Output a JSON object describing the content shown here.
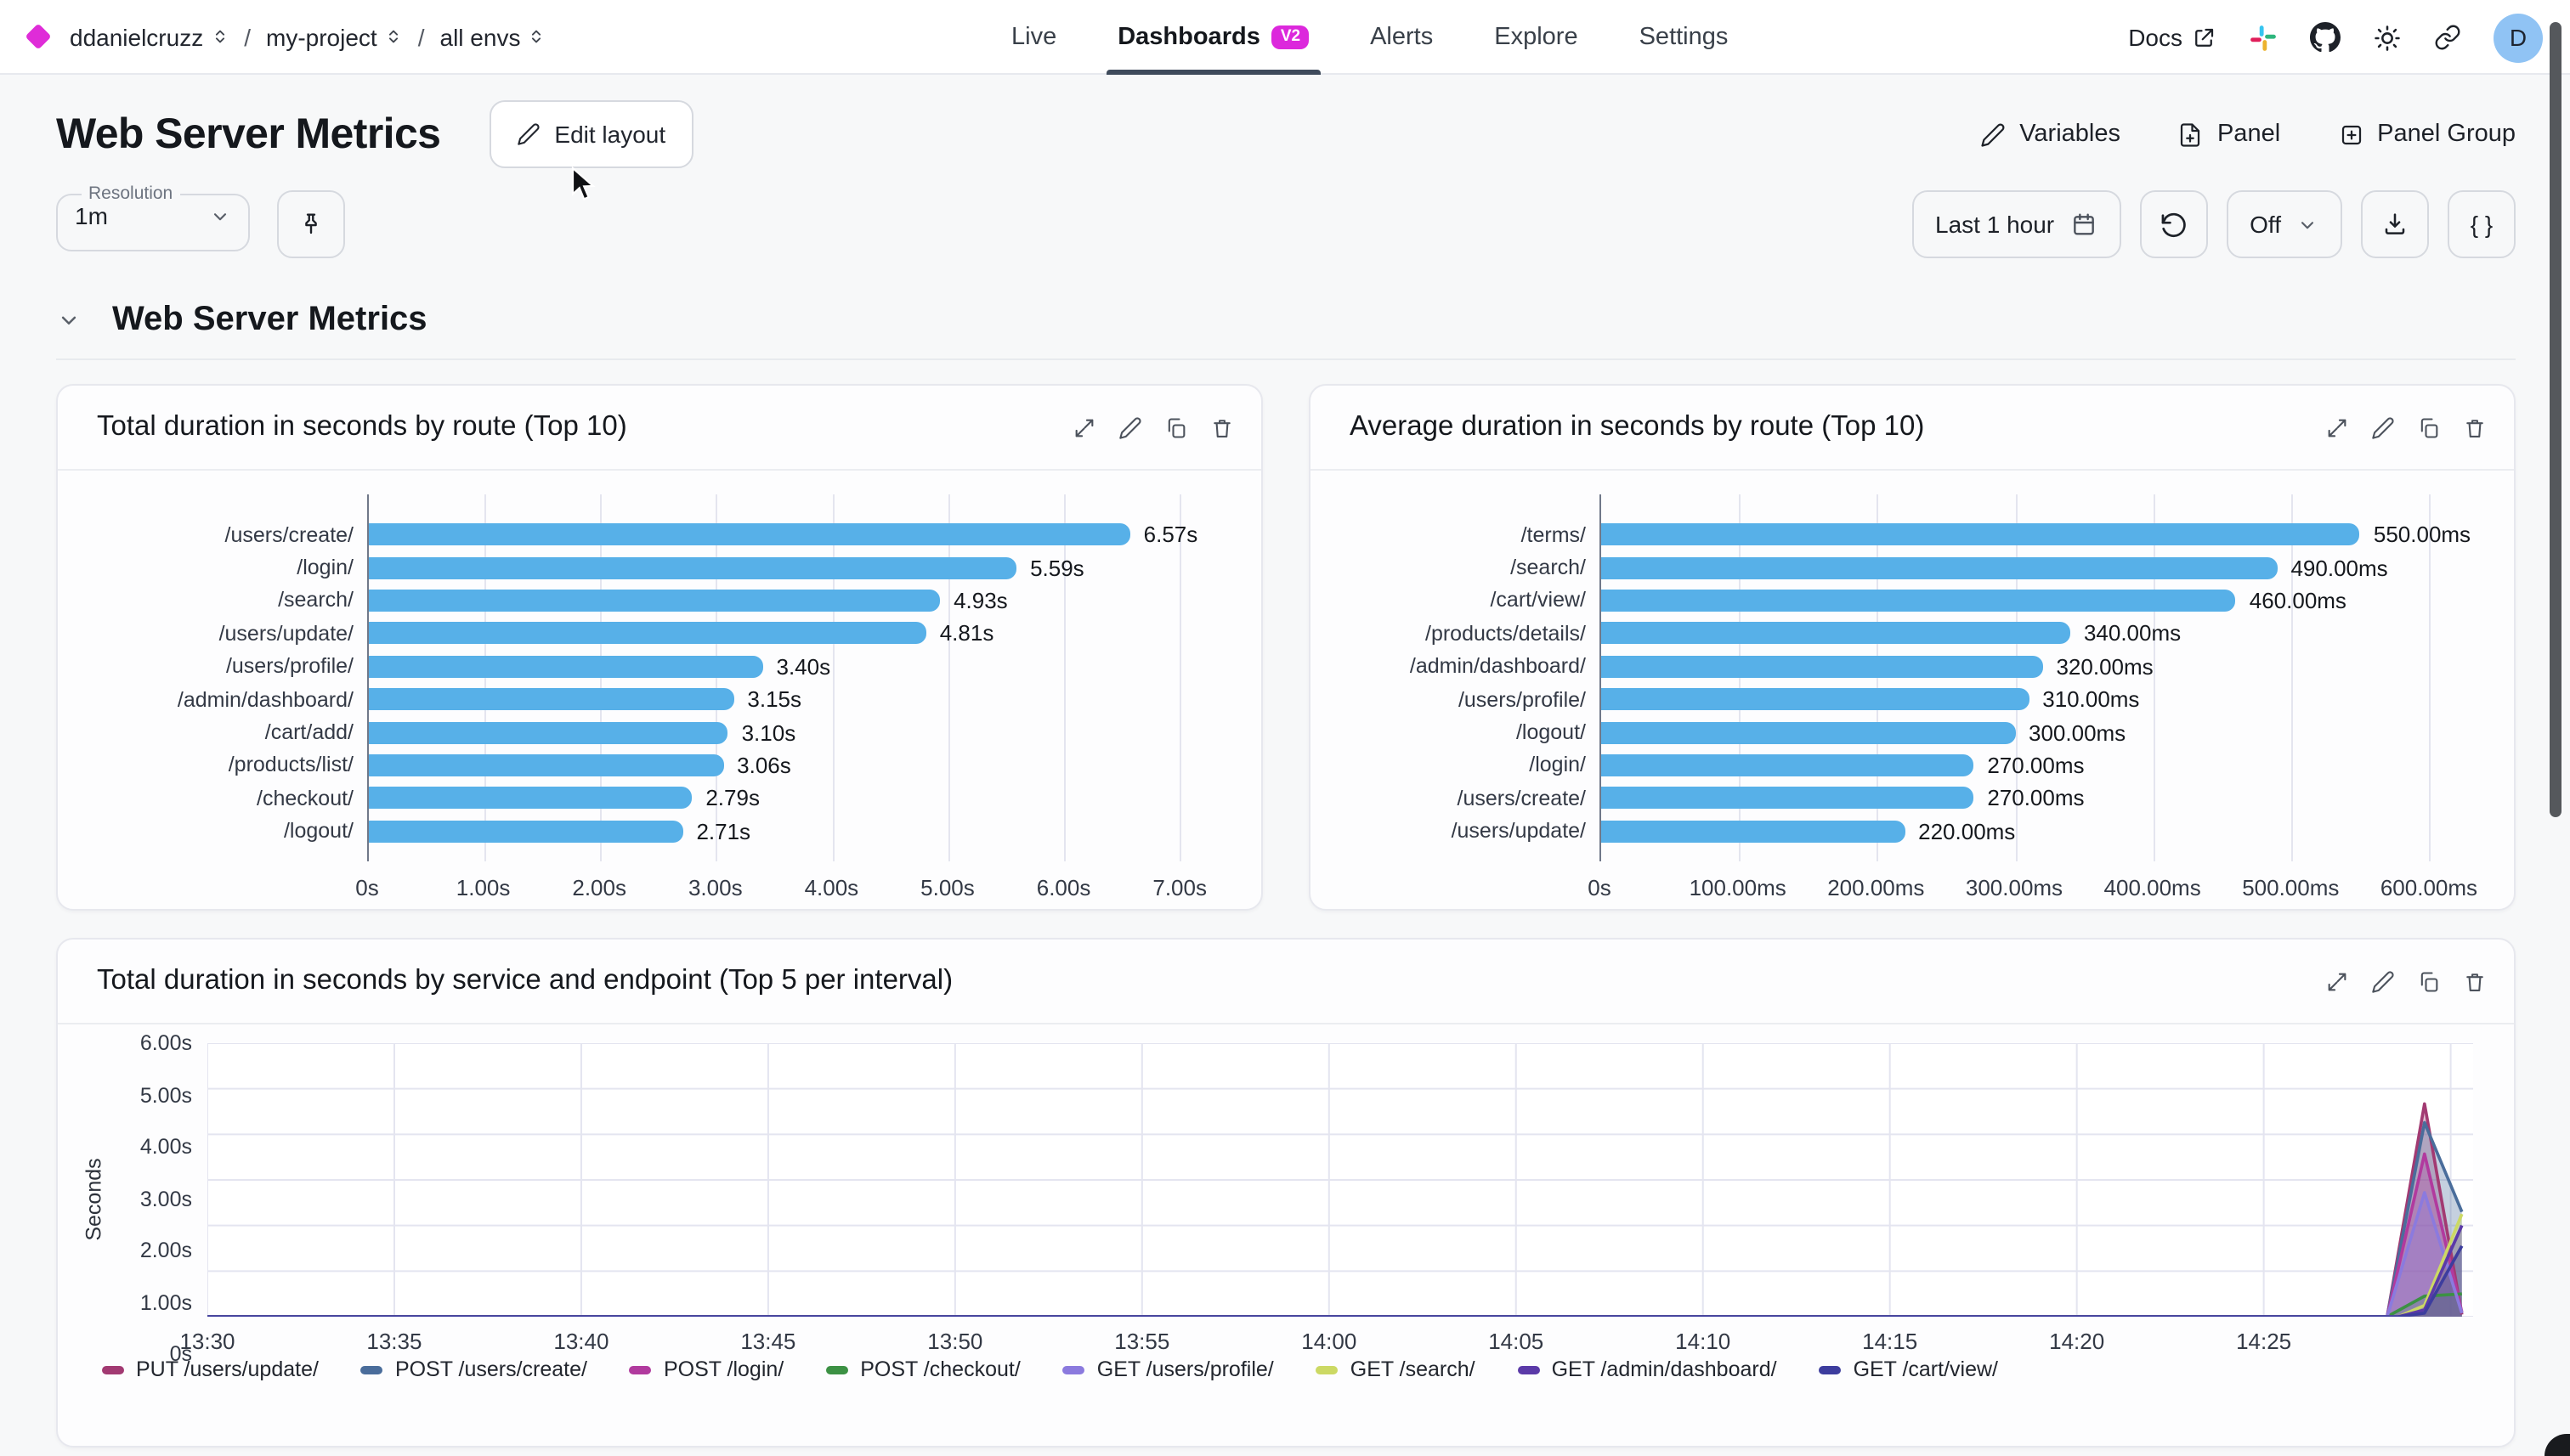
{
  "topbar": {
    "breadcrumb": {
      "org": "ddanielcruzz",
      "separator": "/",
      "project": "my-project",
      "env": "all envs"
    },
    "tabs": [
      {
        "label": "Live",
        "active": false
      },
      {
        "label": "Dashboards",
        "badge": "V2",
        "active": true
      },
      {
        "label": "Alerts",
        "active": false
      },
      {
        "label": "Explore",
        "active": false
      },
      {
        "label": "Settings",
        "active": false
      }
    ],
    "docs_label": "Docs",
    "avatar_initial": "D"
  },
  "header": {
    "title": "Web Server Metrics",
    "edit_layout_label": "Edit layout",
    "variables_label": "Variables",
    "panel_label": "Panel",
    "panel_group_label": "Panel Group"
  },
  "controls": {
    "resolution_label": "Resolution",
    "resolution_value": "1m",
    "time_range": "Last 1 hour",
    "auto_refresh": "Off",
    "braces_label": "{ }"
  },
  "section": {
    "title": "Web Server Metrics"
  },
  "icons": [
    "diamond-logo",
    "external-link",
    "slack",
    "github",
    "sun-theme",
    "link",
    "pencil",
    "file-plus",
    "square-plus",
    "pin",
    "calendar",
    "refresh-ccw",
    "chevron-down",
    "download",
    "expand",
    "copy",
    "trash"
  ],
  "colors": {
    "accent_magenta": "#dc28dc",
    "bar_blue": "#57b0e8",
    "tab_underline": "#3e4a5b",
    "avatar_bg": "#90c3f4"
  },
  "chart_data": [
    {
      "type": "bar",
      "orientation": "horizontal",
      "title": "Total duration in seconds by route (Top 10)",
      "categories": [
        "/users/create/",
        "/login/",
        "/search/",
        "/users/update/",
        "/users/profile/",
        "/admin/dashboard/",
        "/cart/add/",
        "/products/list/",
        "/checkout/",
        "/logout/"
      ],
      "values": [
        6.57,
        5.59,
        4.93,
        4.81,
        3.4,
        3.15,
        3.1,
        3.06,
        2.79,
        2.71
      ],
      "value_labels": [
        "6.57s",
        "5.59s",
        "4.93s",
        "4.81s",
        "3.40s",
        "3.15s",
        "3.10s",
        "3.06s",
        "2.79s",
        "2.71s"
      ],
      "xlabel": "",
      "ylabel": "",
      "xticks": {
        "values": [
          0,
          1,
          2,
          3,
          4,
          5,
          6,
          7
        ],
        "labels": [
          "0s",
          "1.00s",
          "2.00s",
          "3.00s",
          "4.00s",
          "5.00s",
          "6.00s",
          "7.00s"
        ]
      },
      "xmax": 7.35,
      "bar_color": "#57b0e8",
      "grid": true
    },
    {
      "type": "bar",
      "orientation": "horizontal",
      "title": "Average duration in seconds by route (Top 10)",
      "categories": [
        "/terms/",
        "/search/",
        "/cart/view/",
        "/products/details/",
        "/admin/dashboard/",
        "/users/profile/",
        "/logout/",
        "/login/",
        "/users/create/",
        "/users/update/"
      ],
      "values": [
        550,
        490,
        460,
        340,
        320,
        310,
        300,
        270,
        270,
        220
      ],
      "value_labels": [
        "550.00ms",
        "490.00ms",
        "460.00ms",
        "340.00ms",
        "320.00ms",
        "310.00ms",
        "300.00ms",
        "270.00ms",
        "270.00ms",
        "220.00ms"
      ],
      "xlabel": "",
      "ylabel": "",
      "xticks": {
        "values": [
          0,
          100,
          200,
          300,
          400,
          500,
          600
        ],
        "labels": [
          "0s",
          "100.00ms",
          "200.00ms",
          "300.00ms",
          "400.00ms",
          "500.00ms",
          "600.00ms"
        ]
      },
      "xmax": 632,
      "bar_color": "#57b0e8",
      "grid": true
    },
    {
      "type": "area",
      "title": "Total duration in seconds by service and endpoint (Top 5 per interval)",
      "ylabel": "Seconds",
      "yticks": {
        "values": [
          0,
          1,
          2,
          3,
          4,
          5,
          6
        ],
        "labels": [
          "0s",
          "1.00s",
          "2.00s",
          "3.00s",
          "4.00s",
          "5.00s",
          "6.00s"
        ]
      },
      "ymax": 6,
      "xticks": {
        "values": [
          0,
          5,
          10,
          15,
          20,
          25,
          30,
          35,
          40,
          45,
          50,
          55
        ],
        "labels": [
          "13:30",
          "13:35",
          "13:40",
          "13:45",
          "13:50",
          "13:55",
          "14:00",
          "14:05",
          "14:10",
          "14:15",
          "14:20",
          "14:25"
        ]
      },
      "xmax": 60.6,
      "grid": true,
      "legend_position": "bottom",
      "series": [
        {
          "name": "PUT /users/update/",
          "color": "#a23a72",
          "points": [
            [
              0,
              0
            ],
            [
              58.3,
              0
            ],
            [
              59.3,
              4.67
            ],
            [
              60.3,
              0.05
            ]
          ]
        },
        {
          "name": "POST /users/create/",
          "color": "#4a6d9b",
          "points": [
            [
              0,
              0
            ],
            [
              58.3,
              0
            ],
            [
              59.3,
              4.26
            ],
            [
              60.3,
              2.3
            ]
          ]
        },
        {
          "name": "POST /login/",
          "color": "#b13a9e",
          "points": [
            [
              0,
              0
            ],
            [
              58.3,
              0
            ],
            [
              59.3,
              3.57
            ],
            [
              60.3,
              0.1
            ]
          ]
        },
        {
          "name": "POST /checkout/",
          "color": "#3c9144",
          "points": [
            [
              0,
              0
            ],
            [
              58.3,
              0
            ],
            [
              59.3,
              0.45
            ],
            [
              60.3,
              0.5
            ]
          ]
        },
        {
          "name": "GET /users/profile/",
          "color": "#8b7ade",
          "points": [
            [
              0,
              0
            ],
            [
              58.3,
              0
            ],
            [
              59.3,
              2.72
            ],
            [
              60.3,
              0.08
            ]
          ]
        },
        {
          "name": "GET /search/",
          "color": "#ccd964",
          "points": [
            [
              0,
              0
            ],
            [
              58.6,
              0
            ],
            [
              59.3,
              0.25
            ],
            [
              60.3,
              2.25
            ]
          ]
        },
        {
          "name": "GET /admin/dashboard/",
          "color": "#5b3aa8",
          "points": [
            [
              0,
              0
            ],
            [
              58.6,
              0
            ],
            [
              59.3,
              0.15
            ],
            [
              60.3,
              2.0
            ]
          ]
        },
        {
          "name": "GET /cart/view/",
          "color": "#3d3d9e",
          "points": [
            [
              0,
              0
            ],
            [
              58.6,
              0
            ],
            [
              59.3,
              0.08
            ],
            [
              60.3,
              1.55
            ]
          ]
        }
      ]
    }
  ]
}
